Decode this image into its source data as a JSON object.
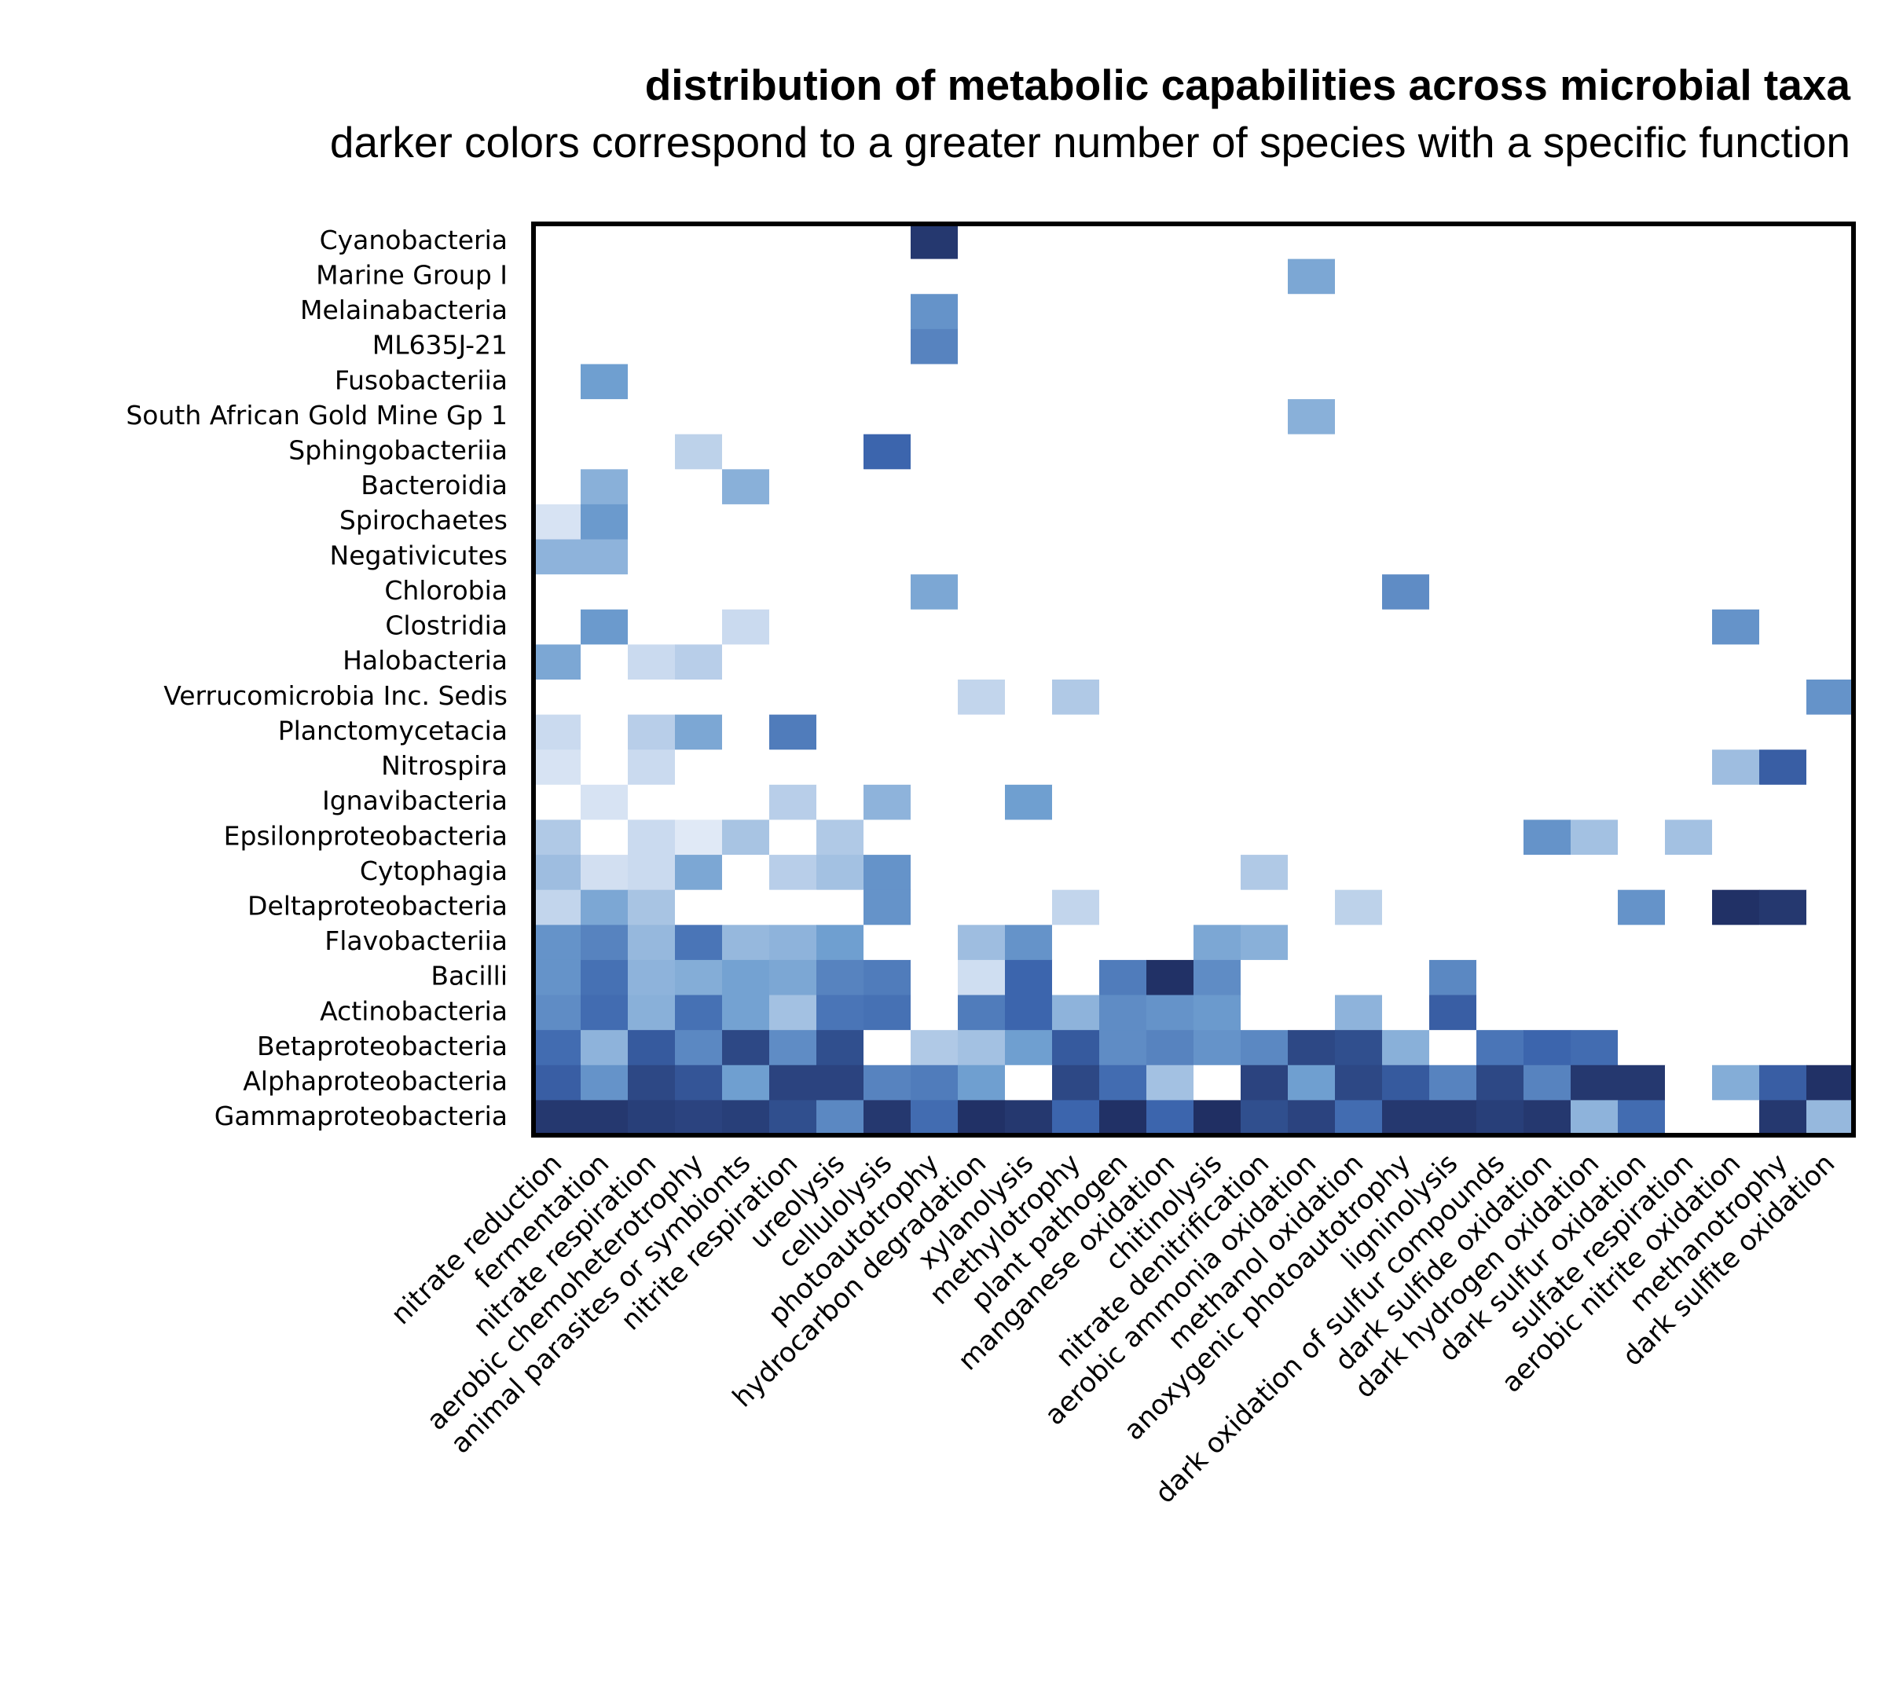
{
  "chart_data": {
    "type": "heatmap",
    "title": "distribution of metabolic capabilities across microbial taxa",
    "subtitle": "darker colors correspond to a greater number of species with a specific function",
    "value_scale": "0 = none (white), 1.0 = most species (darkest blue)",
    "colors": {
      "light": "#dce6f5",
      "mid": "#6f9fd0",
      "dark": "#3c65ad",
      "darkest": "#1f2d60"
    },
    "rows": [
      "Cyanobacteria",
      "Marine Group I",
      "Melainabacteria",
      "ML635J-21",
      "Fusobacteriia",
      "South African Gold Mine Gp 1",
      "Sphingobacteriia",
      "Bacteroidia",
      "Spirochaetes",
      "Negativicutes",
      "Chlorobia",
      "Clostridia",
      "Halobacteria",
      "Verrucomicrobia Inc. Sedis",
      "Planctomycetacia",
      "Nitrospira",
      "Ignavibacteria",
      "Epsilonproteobacteria",
      "Cytophagia",
      "Deltaproteobacteria",
      "Flavobacteriia",
      "Bacilli",
      "Actinobacteria",
      "Betaproteobacteria",
      "Alphaproteobacteria",
      "Gammaproteobacteria"
    ],
    "columns": [
      "nitrate reduction",
      "fermentation",
      "nitrate respiration",
      "aerobic chemoheterotrophy",
      "animal parasites or symbionts",
      "nitrite respiration",
      "ureolysis",
      "cellulolysis",
      "photoautotrophy",
      "hydrocarbon degradation",
      "xylanolysis",
      "methylotrophy",
      "plant pathogen",
      "manganese oxidation",
      "chitinolysis",
      "nitrate denitrification",
      "aerobic ammonia oxidation",
      "methanol oxidation",
      "anoxygenic photoautotrophy",
      "ligninolysis",
      "dark oxidation of sulfur compounds",
      "dark sulfide oxidation",
      "dark hydrogen oxidation",
      "dark sulfur oxidation",
      "sulfate respiration",
      "aerobic nitrite oxidation",
      "methanotrophy",
      "dark sulfite oxidation"
    ],
    "values": [
      [
        0,
        0,
        0,
        0,
        0,
        0,
        0,
        0,
        0.95,
        0,
        0,
        0,
        0,
        0,
        0,
        0,
        0,
        0,
        0,
        0,
        0,
        0,
        0,
        0,
        0,
        0,
        0,
        0
      ],
      [
        0,
        0,
        0,
        0,
        0,
        0,
        0,
        0,
        0,
        0,
        0,
        0,
        0,
        0,
        0,
        0,
        0.45,
        0,
        0,
        0,
        0,
        0,
        0,
        0,
        0,
        0,
        0,
        0
      ],
      [
        0,
        0,
        0,
        0,
        0,
        0,
        0,
        0,
        0.55,
        0,
        0,
        0,
        0,
        0,
        0,
        0,
        0,
        0,
        0,
        0,
        0,
        0,
        0,
        0,
        0,
        0,
        0,
        0
      ],
      [
        0,
        0,
        0,
        0,
        0,
        0,
        0,
        0,
        0.62,
        0,
        0,
        0,
        0,
        0,
        0,
        0,
        0,
        0,
        0,
        0,
        0,
        0,
        0,
        0,
        0,
        0,
        0,
        0
      ],
      [
        0,
        0.5,
        0,
        0,
        0,
        0,
        0,
        0,
        0,
        0,
        0,
        0,
        0,
        0,
        0,
        0,
        0,
        0,
        0,
        0,
        0,
        0,
        0,
        0,
        0,
        0,
        0,
        0
      ],
      [
        0,
        0,
        0,
        0,
        0,
        0,
        0,
        0,
        0,
        0,
        0,
        0,
        0,
        0,
        0,
        0,
        0.4,
        0,
        0,
        0,
        0,
        0,
        0,
        0,
        0,
        0,
        0,
        0
      ],
      [
        0,
        0,
        0,
        0.2,
        0,
        0,
        0,
        0.75,
        0,
        0,
        0,
        0,
        0,
        0,
        0,
        0,
        0,
        0,
        0,
        0,
        0,
        0,
        0,
        0,
        0,
        0,
        0,
        0
      ],
      [
        0,
        0.4,
        0,
        0,
        0.4,
        0,
        0,
        0,
        0,
        0,
        0,
        0,
        0,
        0,
        0,
        0,
        0,
        0,
        0,
        0,
        0,
        0,
        0,
        0,
        0,
        0,
        0,
        0
      ],
      [
        0.1,
        0.52,
        0,
        0,
        0,
        0,
        0,
        0,
        0,
        0,
        0,
        0,
        0,
        0,
        0,
        0,
        0,
        0,
        0,
        0,
        0,
        0,
        0,
        0,
        0,
        0,
        0,
        0
      ],
      [
        0.38,
        0.38,
        0,
        0,
        0,
        0,
        0,
        0,
        0,
        0,
        0,
        0,
        0,
        0,
        0,
        0,
        0,
        0,
        0,
        0,
        0,
        0,
        0,
        0,
        0,
        0,
        0,
        0
      ],
      [
        0,
        0,
        0,
        0,
        0,
        0,
        0,
        0,
        0.45,
        0,
        0,
        0,
        0,
        0,
        0,
        0,
        0,
        0,
        0.58,
        0,
        0,
        0,
        0,
        0,
        0,
        0,
        0,
        0
      ],
      [
        0,
        0.52,
        0,
        0,
        0.15,
        0,
        0,
        0,
        0,
        0,
        0,
        0,
        0,
        0,
        0,
        0,
        0,
        0,
        0,
        0,
        0,
        0,
        0,
        0,
        0,
        0.55,
        0,
        0
      ],
      [
        0.45,
        0,
        0.15,
        0.22,
        0,
        0,
        0,
        0,
        0,
        0,
        0,
        0,
        0,
        0,
        0,
        0,
        0,
        0,
        0,
        0,
        0,
        0,
        0,
        0,
        0,
        0,
        0,
        0
      ],
      [
        0,
        0,
        0,
        0,
        0,
        0,
        0,
        0,
        0,
        0.18,
        0,
        0.25,
        0,
        0,
        0,
        0,
        0,
        0,
        0,
        0,
        0,
        0,
        0,
        0,
        0,
        0,
        0,
        0.55
      ],
      [
        0.15,
        0,
        0.22,
        0.45,
        0,
        0.65,
        0,
        0,
        0,
        0,
        0,
        0,
        0,
        0,
        0,
        0,
        0,
        0,
        0,
        0,
        0,
        0,
        0,
        0,
        0,
        0,
        0,
        0
      ],
      [
        0.1,
        0,
        0.15,
        0,
        0,
        0,
        0,
        0,
        0,
        0,
        0,
        0,
        0,
        0,
        0,
        0,
        0,
        0,
        0,
        0,
        0,
        0,
        0,
        0,
        0,
        0.32,
        0.78,
        0
      ],
      [
        0,
        0.1,
        0,
        0,
        0,
        0.22,
        0,
        0.38,
        0,
        0,
        0.5,
        0,
        0,
        0,
        0,
        0,
        0,
        0,
        0,
        0,
        0,
        0,
        0,
        0,
        0,
        0,
        0,
        0
      ],
      [
        0.25,
        0,
        0.15,
        0.07,
        0.28,
        0,
        0.25,
        0,
        0,
        0,
        0,
        0,
        0,
        0,
        0,
        0,
        0,
        0,
        0,
        0,
        0,
        0.55,
        0.3,
        0,
        0.3,
        0,
        0,
        0
      ],
      [
        0.32,
        0.12,
        0.15,
        0.45,
        0,
        0.22,
        0.3,
        0.55,
        0,
        0,
        0,
        0,
        0,
        0,
        0,
        0.25,
        0,
        0,
        0,
        0,
        0,
        0,
        0,
        0,
        0,
        0,
        0,
        0
      ],
      [
        0.18,
        0.45,
        0.28,
        0,
        0,
        0,
        0,
        0.55,
        0,
        0,
        0,
        0.18,
        0,
        0,
        0,
        0,
        0,
        0.2,
        0,
        0,
        0,
        0,
        0,
        0.55,
        0,
        0.98,
        0.95,
        0
      ],
      [
        0.55,
        0.62,
        0.35,
        0.68,
        0.35,
        0.38,
        0.5,
        0,
        0,
        0.32,
        0.55,
        0,
        0,
        0,
        0.45,
        0.4,
        0,
        0,
        0,
        0,
        0,
        0,
        0,
        0,
        0,
        0,
        0,
        0
      ],
      [
        0.55,
        0.7,
        0.38,
        0.42,
        0.48,
        0.45,
        0.62,
        0.65,
        0,
        0.13,
        0.75,
        0,
        0.65,
        0.98,
        0.58,
        0,
        0,
        0,
        0,
        0.6,
        0,
        0,
        0,
        0,
        0,
        0,
        0,
        0
      ],
      [
        0.58,
        0.72,
        0.4,
        0.7,
        0.48,
        0.3,
        0.68,
        0.7,
        0,
        0.65,
        0.75,
        0.38,
        0.58,
        0.55,
        0.52,
        0,
        0,
        0.38,
        0,
        0.78,
        0,
        0,
        0,
        0,
        0,
        0,
        0,
        0
      ],
      [
        0.72,
        0.38,
        0.8,
        0.6,
        0.88,
        0.58,
        0.85,
        0,
        0.25,
        0.3,
        0.5,
        0.8,
        0.58,
        0.62,
        0.55,
        0.6,
        0.88,
        0.85,
        0.4,
        0,
        0.68,
        0.75,
        0.72,
        0,
        0,
        0,
        0,
        0
      ],
      [
        0.78,
        0.55,
        0.88,
        0.82,
        0.5,
        0.9,
        0.9,
        0.62,
        0.65,
        0.5,
        0,
        0.88,
        0.72,
        0.3,
        0,
        0.9,
        0.5,
        0.88,
        0.8,
        0.62,
        0.88,
        0.62,
        0.95,
        0.95,
        0,
        0.42,
        0.78,
        0.98
      ],
      [
        0.95,
        0.95,
        0.92,
        0.9,
        0.92,
        0.85,
        0.6,
        0.95,
        0.72,
        0.98,
        0.95,
        0.75,
        0.98,
        0.75,
        0.99,
        0.85,
        0.9,
        0.72,
        0.95,
        0.95,
        0.92,
        0.95,
        0.38,
        0.72,
        0,
        0,
        0.95,
        0.35
      ]
    ]
  }
}
